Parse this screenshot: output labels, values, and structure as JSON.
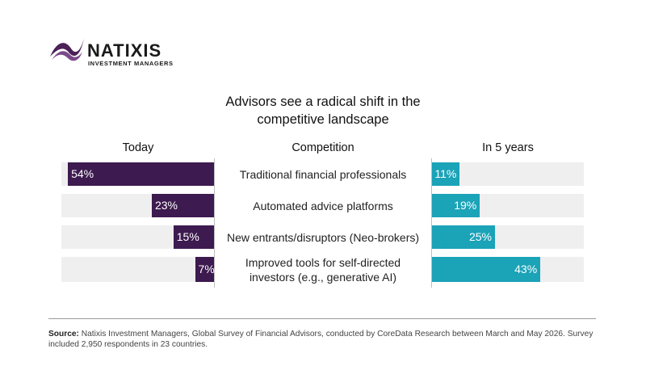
{
  "brand": {
    "name": "NATIXIS",
    "subtitle": "INVESTMENT MANAGERS",
    "logo_color": "#4b2158"
  },
  "chart_data": {
    "type": "bar",
    "title": "Advisors see a radical shift in the competitive landscape",
    "title_lines": [
      "Advisors see a radical shift in the",
      "competitive landscape"
    ],
    "category_header": "Competition",
    "categories": [
      "Traditional financial professionals",
      "Automated advice platforms",
      "New entrants/disruptors (Neo-brokers)",
      "Improved tools for self-directed investors (e.g., generative AI)"
    ],
    "category_lines": [
      [
        "Traditional financial professionals"
      ],
      [
        "Automated advice platforms"
      ],
      [
        "New entrants/disruptors (Neo-brokers)"
      ],
      [
        "Improved tools for self-directed",
        "investors (e.g., generative AI)"
      ]
    ],
    "series": [
      {
        "name": "Today",
        "values": [
          54,
          23,
          15,
          7
        ],
        "labels": [
          "54%",
          "23%",
          "15%",
          "7%"
        ],
        "color": "#3d1a4f",
        "direction": "left"
      },
      {
        "name": "In 5 years",
        "values": [
          11,
          19,
          25,
          43
        ],
        "labels": [
          "11%",
          "19%",
          "25%",
          "43%"
        ],
        "color": "#1ba3b8",
        "direction": "right"
      }
    ],
    "ylim": [
      0,
      100
    ],
    "unit": "%",
    "background_band_color": "#efefef"
  },
  "footer": {
    "source_label": "Source:",
    "source_text": "Natixis Investment Managers, Global Survey of Financial Advisors, conducted by CoreData Research between March and May 2026. Survey included 2,950 respondents in 23 countries."
  }
}
